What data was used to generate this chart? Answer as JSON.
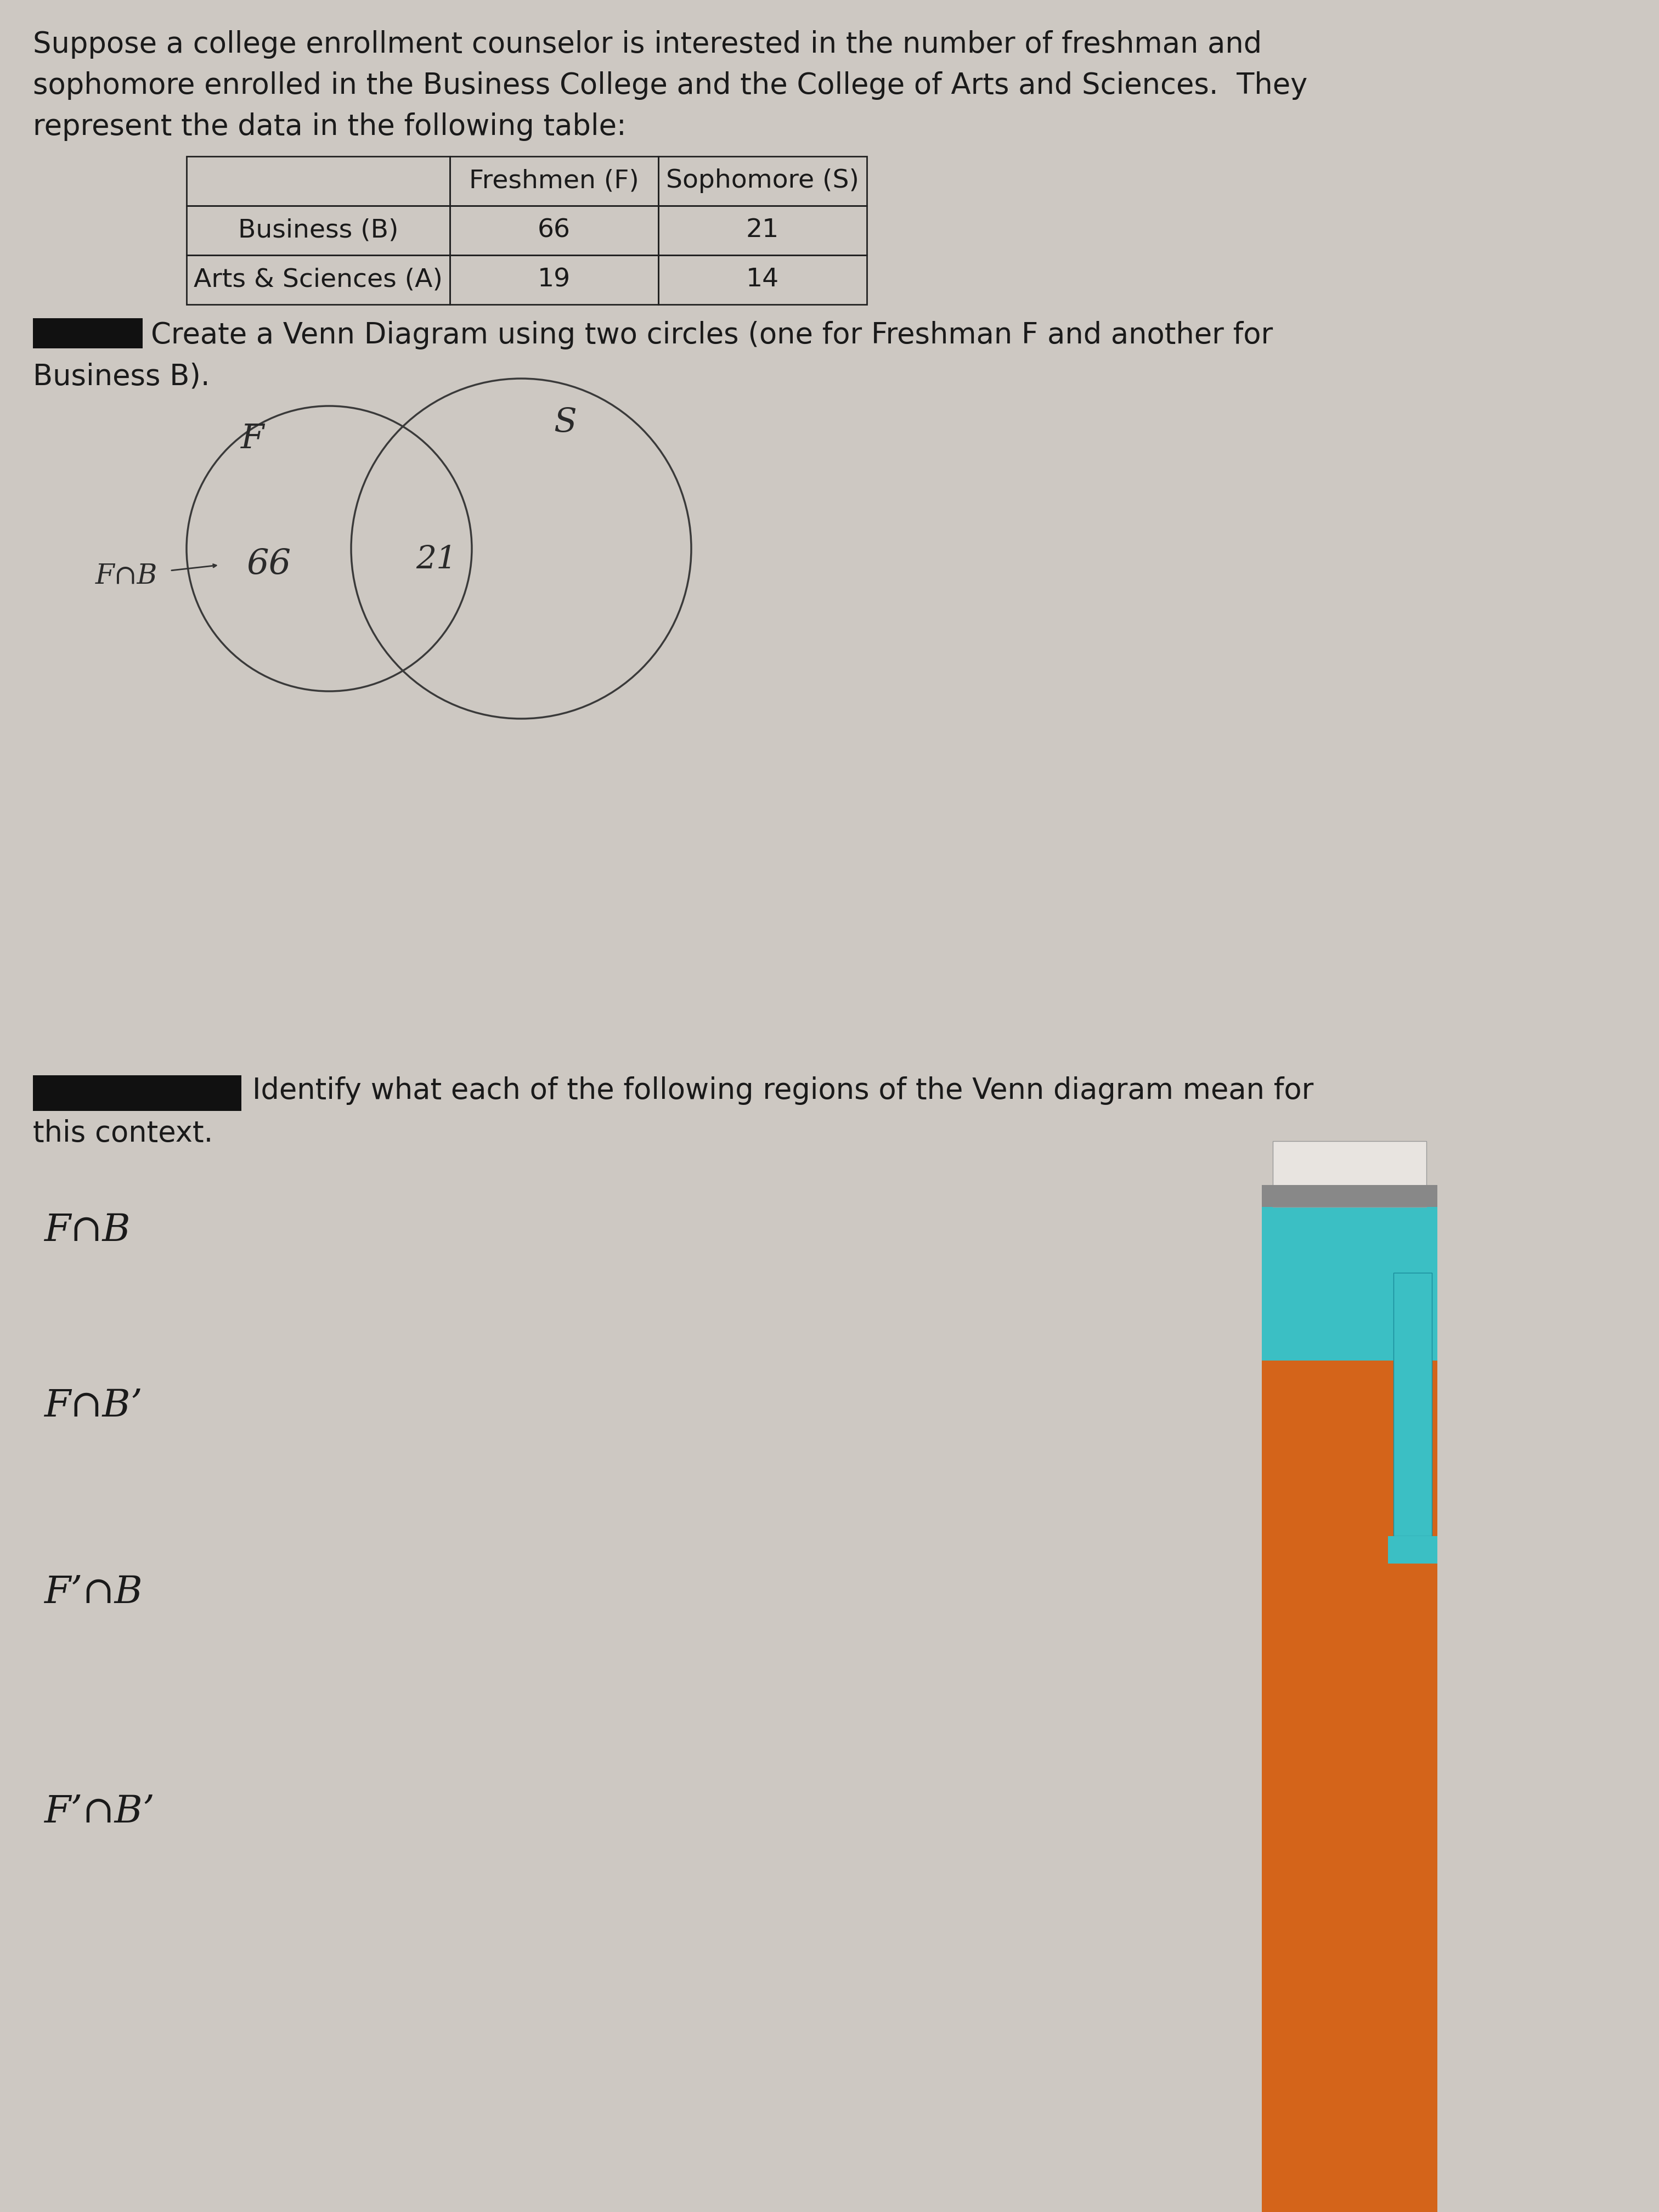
{
  "background_color": "#cdc8c2",
  "text_color": "#1a1a1a",
  "intro_text_line1": "Suppose a college enrollment counselor is interested in the number of freshman and",
  "intro_text_line2": "sophomore enrolled in the Business College and the College of Arts and Sciences.  They",
  "intro_text_line3": "represent the data in the following table:",
  "table_headers": [
    "",
    "Freshmen (F)",
    "Sophomore (S)"
  ],
  "table_rows": [
    [
      "Business (B)",
      "66",
      "21"
    ],
    [
      "Arts & Sciences (A)",
      "19",
      "14"
    ]
  ],
  "venn_instruction_line1": "Create a Venn Diagram using two circles (one for Freshman F and another for",
  "venn_instruction_line2": "Business B).",
  "identify_instruction_line1": "Identify what each of the following regions of the Venn diagram mean for",
  "identify_instruction_line2": "this context.",
  "venn_label_F": "F",
  "venn_label_S": "S",
  "venn_value_left": "66",
  "venn_value_center": "21",
  "venn_outside_label": "F∩B",
  "regions": [
    "F∩B",
    "F∩B’",
    "F’∩B",
    "F’∩B’"
  ],
  "circle_color": "#3a3a3a",
  "circle_linewidth": 2.5,
  "pencil_orange": "#D4641A",
  "pencil_teal": "#3BBFC4",
  "pencil_eraser_white": "#e8e4e0",
  "pencil_dark": "#2a1a0a"
}
